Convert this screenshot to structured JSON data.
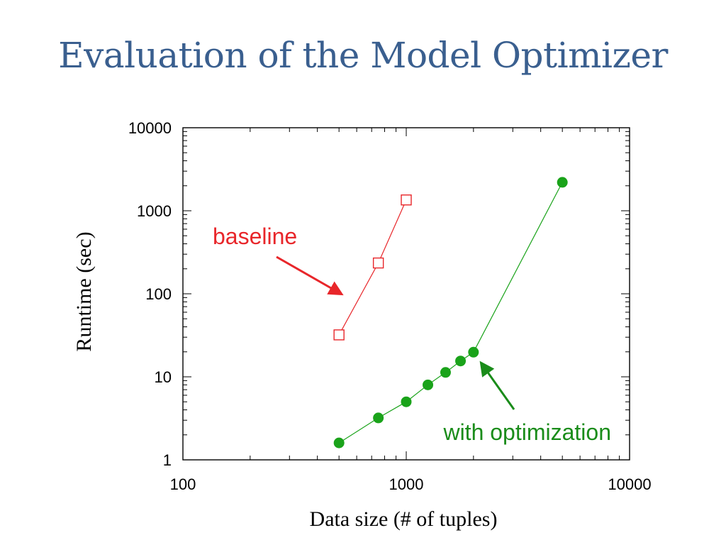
{
  "slide": {
    "title": "Evaluation of the Model Optimizer"
  },
  "chart_data": {
    "type": "line",
    "xlabel": "Data size (# of tuples)",
    "ylabel": "Runtime (sec)",
    "xscale": "log",
    "yscale": "log",
    "xlim": [
      100,
      10000
    ],
    "ylim": [
      1,
      10000
    ],
    "x_tick_labels": [
      "100",
      "1000",
      "10000"
    ],
    "y_tick_labels": [
      "1",
      "10",
      "100",
      "1000",
      "10000"
    ],
    "grid": false,
    "legend": "none",
    "series": [
      {
        "name": "baseline",
        "color": "#e8262a",
        "marker": "open-square",
        "x": [
          500,
          750,
          1000
        ],
        "y": [
          32,
          235,
          1350
        ]
      },
      {
        "name": "with optimization",
        "color": "#1aa31a",
        "marker": "filled-circle",
        "x": [
          500,
          750,
          1000,
          1250,
          1500,
          1750,
          2000,
          5000
        ],
        "y": [
          1.6,
          3.2,
          5.0,
          8.0,
          11.3,
          15.5,
          19.8,
          2200
        ]
      }
    ],
    "annotations": [
      {
        "text": "baseline",
        "color": "#e8262a"
      },
      {
        "text": "with optimization",
        "color": "#1a8c1a"
      }
    ]
  }
}
